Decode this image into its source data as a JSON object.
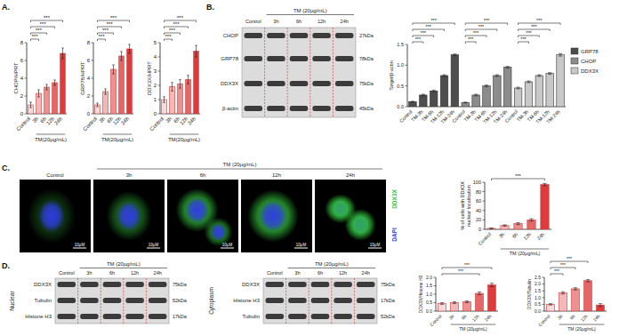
{
  "panel_labels": [
    "A.",
    "B.",
    "C.",
    "D."
  ],
  "chart_data": [
    {
      "type": "bar",
      "ylabel": "CHOP/HPRT",
      "xlabel": "TM(20μg/mL)",
      "categories": [
        "Control",
        "3h",
        "6h",
        "12h",
        "24h"
      ],
      "values": [
        1.0,
        2.3,
        3.0,
        3.5,
        6.8
      ],
      "errors": [
        0.3,
        0.4,
        0.3,
        0.3,
        0.6
      ],
      "colors": [
        "#f9d9d9",
        "#f3b8b8",
        "#ec9090",
        "#e56666",
        "#dd3c3c"
      ],
      "ylim": [
        0,
        8
      ],
      "yticks": [
        0,
        2,
        4,
        6,
        8
      ],
      "significance": [
        {
          "label": "***",
          "between": [
            "Control",
            "3h"
          ]
        },
        {
          "label": "***",
          "between": [
            "Control",
            "6h"
          ]
        },
        {
          "label": "***",
          "between": [
            "Control",
            "12h"
          ]
        },
        {
          "label": "***",
          "between": [
            "Control",
            "24h"
          ]
        }
      ]
    },
    {
      "type": "bar",
      "ylabel": "GRP78/HPRT",
      "xlabel": "TM(20μg/mL)",
      "categories": [
        "Control",
        "3h",
        "6h",
        "12h",
        "24h"
      ],
      "values": [
        1.0,
        2.5,
        5.0,
        6.5,
        7.3
      ],
      "errors": [
        0.2,
        0.3,
        0.5,
        0.5,
        0.5
      ],
      "colors": [
        "#f9d9d9",
        "#f3b8b8",
        "#ec9090",
        "#e56666",
        "#dd3c3c"
      ],
      "ylim": [
        0,
        8
      ],
      "yticks": [
        0,
        2,
        4,
        6,
        8
      ],
      "significance": [
        {
          "label": "***",
          "between": [
            "Control",
            "3h"
          ]
        },
        {
          "label": "***",
          "between": [
            "Control",
            "6h"
          ]
        },
        {
          "label": "***",
          "between": [
            "Control",
            "12h"
          ]
        },
        {
          "label": "***",
          "between": [
            "Control",
            "24h"
          ]
        }
      ]
    },
    {
      "type": "bar",
      "ylabel": "DDX3X/HPRT",
      "xlabel": "TM(20μg/mL)",
      "categories": [
        "Control",
        "3h",
        "6h",
        "12h",
        "24h"
      ],
      "values": [
        1.0,
        1.9,
        2.1,
        2.4,
        4.4
      ],
      "errors": [
        0.2,
        0.3,
        0.3,
        0.3,
        0.4
      ],
      "colors": [
        "#f9d9d9",
        "#f3b8b8",
        "#ec9090",
        "#e56666",
        "#dd3c3c"
      ],
      "ylim": [
        0,
        5
      ],
      "yticks": [
        0,
        1,
        2,
        3,
        4,
        5
      ],
      "significance": [
        {
          "label": "***",
          "between": [
            "Control",
            "3h"
          ]
        },
        {
          "label": "***",
          "between": [
            "Control",
            "6h"
          ]
        },
        {
          "label": "***",
          "between": [
            "Control",
            "12h"
          ]
        },
        {
          "label": "***",
          "between": [
            "Control",
            "24h"
          ]
        }
      ]
    },
    {
      "type": "bar",
      "ylabel": "Target/β-actin",
      "legend": "right",
      "categories": [
        "Control",
        "TM-3h",
        "TM-6h",
        "TM-12h",
        "TM-24h"
      ],
      "series": [
        {
          "name": "GRP78",
          "color": "#4d4d4d",
          "values": [
            0.12,
            0.28,
            0.38,
            0.75,
            1.25
          ],
          "errors": [
            0.01,
            0.02,
            0.02,
            0.02,
            0.02
          ],
          "significance": [
            {
              "label": "***",
              "between": [
                "Control",
                "TM-3h"
              ]
            },
            {
              "label": "***",
              "between": [
                "Control",
                "TM-6h"
              ]
            },
            {
              "label": "***",
              "between": [
                "Control",
                "TM-12h"
              ]
            },
            {
              "label": "***",
              "between": [
                "Control",
                "TM-24h"
              ]
            }
          ]
        },
        {
          "name": "CHOP",
          "color": "#8c8c8c",
          "values": [
            0.1,
            0.28,
            0.5,
            0.75,
            0.95
          ],
          "errors": [
            0.01,
            0.02,
            0.02,
            0.02,
            0.02
          ],
          "significance": [
            {
              "label": "***",
              "between": [
                "Control",
                "TM-3h"
              ]
            },
            {
              "label": "***",
              "between": [
                "Control",
                "TM-6h"
              ]
            },
            {
              "label": "***",
              "between": [
                "Control",
                "TM-12h"
              ]
            },
            {
              "label": "***",
              "between": [
                "Control",
                "TM-24h"
              ]
            }
          ]
        },
        {
          "name": "DDX3X",
          "color": "#c8c8c8",
          "values": [
            0.45,
            0.6,
            0.75,
            0.8,
            1.25
          ],
          "errors": [
            0.02,
            0.02,
            0.02,
            0.02,
            0.03
          ],
          "significance": [
            {
              "label": "***",
              "between": [
                "Control",
                "TM-3h"
              ]
            },
            {
              "label": "***",
              "between": [
                "Control",
                "TM-6h"
              ]
            },
            {
              "label": "***",
              "between": [
                "Control",
                "TM-12h"
              ]
            },
            {
              "label": "***",
              "between": [
                "Control",
                "TM-24h"
              ]
            }
          ]
        }
      ],
      "ylim": [
        0,
        1.5
      ],
      "yticks": [
        {
          "value": 0,
          "label": "0.0"
        },
        0.5,
        {
          "value": 1,
          "label": "1.0"
        },
        1.5
      ]
    },
    {
      "type": "bar",
      "ylabel": "% of cells with DDX3X nuclear localisation",
      "xlabel": "TM (20μg/mL)",
      "categories": [
        "Control",
        "3h",
        "6h",
        "12h",
        "24h"
      ],
      "values": [
        2,
        8,
        12,
        20,
        95
      ],
      "errors": [
        1,
        1.5,
        2,
        2.5,
        2.5
      ],
      "colors": [
        "#f9d9d9",
        "#f3b8b8",
        "#ec9090",
        "#e56666",
        "#dd3c3c"
      ],
      "ylim": [
        0,
        100
      ],
      "yticks": [
        0,
        20,
        40,
        60,
        80,
        100
      ],
      "significance": [
        {
          "label": "***",
          "between": [
            "Control",
            "24h"
          ]
        }
      ]
    },
    {
      "type": "bar",
      "ylabel": "DDX3X/Histone H3",
      "xlabel": "TM (20μg/mL)",
      "categories": [
        "Control",
        "3h",
        "6h",
        "12h",
        "24h"
      ],
      "values": [
        0.45,
        0.5,
        0.55,
        1.05,
        1.55
      ],
      "errors": [
        0.05,
        0.05,
        0.05,
        0.08,
        0.1
      ],
      "colors": [
        "#f9d9d9",
        "#f3b8b8",
        "#ec9090",
        "#e56666",
        "#dd3c3c"
      ],
      "ylim": [
        0,
        2
      ],
      "yticks": [
        {
          "value": 0,
          "label": "0.0"
        },
        0.5,
        {
          "value": 1,
          "label": "1.0"
        },
        1.5,
        {
          "value": 2,
          "label": "2.0"
        }
      ],
      "significance": [
        {
          "label": "***",
          "between": [
            "Control",
            "12h"
          ]
        },
        {
          "label": "***",
          "between": [
            "Control",
            "24h"
          ]
        }
      ]
    },
    {
      "type": "bar",
      "ylabel": "DDX3X/Tubulin",
      "xlabel": "TM (20μg/mL)",
      "categories": [
        "Control",
        "3h",
        "6h",
        "12h",
        "24h"
      ],
      "values": [
        0.5,
        1.35,
        1.65,
        2.25,
        0.45
      ],
      "errors": [
        0.05,
        0.08,
        0.08,
        0.08,
        0.1
      ],
      "colors": [
        "#f9d9d9",
        "#f3b8b8",
        "#ec9090",
        "#e56666",
        "#dd3c3c"
      ],
      "ylim": [
        0,
        2.5
      ],
      "yticks": [
        {
          "value": 0,
          "label": "0.0"
        },
        0.5,
        {
          "value": 1,
          "label": "1.0"
        },
        1.5,
        {
          "value": 2,
          "label": "2.0"
        },
        2.5
      ],
      "significance": [
        {
          "label": "***",
          "between": [
            "Control",
            "3h"
          ]
        },
        {
          "label": "***",
          "between": [
            "Control",
            "6h"
          ]
        },
        {
          "label": "***",
          "between": [
            "Control",
            "12h"
          ]
        }
      ]
    }
  ],
  "blots": [
    {
      "header": "TM (20μg/mL)",
      "lanes": [
        "Control",
        "3h",
        "6h",
        "12h",
        "24h"
      ],
      "rows": [
        {
          "name": "CHOP",
          "size": "27kDa"
        },
        {
          "name": "GRP78",
          "size": "78kDa"
        },
        {
          "name": "DDX3X",
          "size": "75kDa"
        },
        {
          "name": "β-actin",
          "size": "45kDa"
        }
      ]
    },
    {
      "title": "Nuclear",
      "header": "TM (20μg/mL)",
      "lanes": [
        "Control",
        "3h",
        "6h",
        "12h",
        "24h"
      ],
      "rows": [
        {
          "name": "DDX3X",
          "size": "75kDa"
        },
        {
          "name": "Tubulin",
          "size": "52kDa"
        },
        {
          "name": "Histone H3",
          "size": "17kDa"
        }
      ]
    },
    {
      "title": "Cytoplasm",
      "header": "TM (20μg/mL)",
      "lanes": [
        "Control",
        "3h",
        "6h",
        "12h",
        "24h"
      ],
      "rows": [
        {
          "name": "DDX3X",
          "size": "75kDa"
        },
        {
          "name": "Histone H3",
          "size": "17kDa"
        },
        {
          "name": "Tubulin",
          "size": "52kDa"
        }
      ]
    }
  ],
  "images": {
    "header": "TM (20μg/mL)",
    "lanes": [
      "Control",
      "3h",
      "6h",
      "12h",
      "24h"
    ],
    "channels": [
      {
        "name": "DDX3X",
        "color": "#33c23c"
      },
      {
        "name": "DAPI",
        "color": "#2f3de0"
      }
    ],
    "scale_bar": "10μM"
  }
}
